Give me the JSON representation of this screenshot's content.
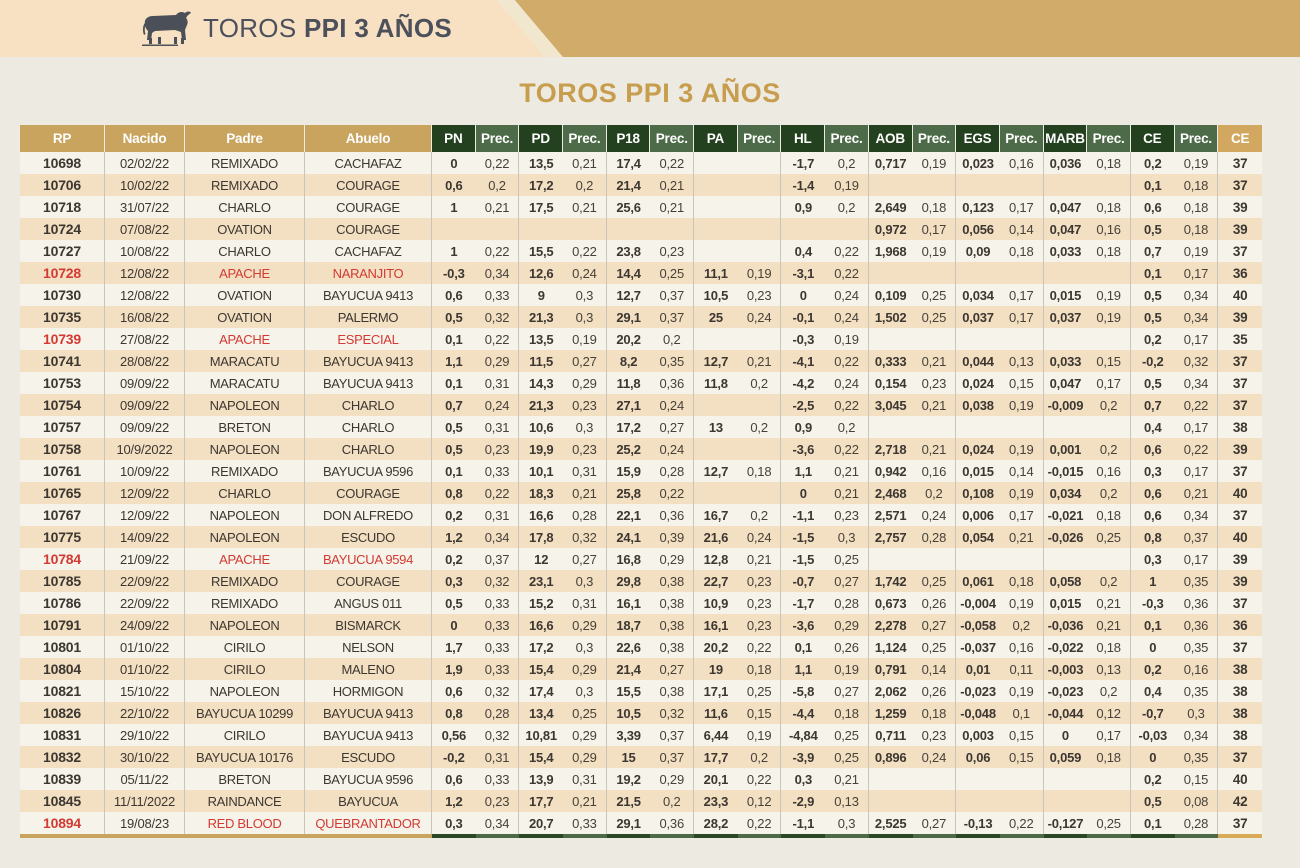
{
  "banner": {
    "title_regular": "TOROS ",
    "title_bold": "PPI 3 AÑOS"
  },
  "page_title": "TOROS PPI 3 AÑOS",
  "colors": {
    "banner_peach": "#f8e0c2",
    "banner_gold": "#d0ab69",
    "title_gold": "#c79d4e",
    "header_tan": "#c8a45f",
    "header_dark_green": "#24411f",
    "header_med_green": "#4e6b49",
    "header_final_gold": "#d2a75f",
    "stripe_light": "#f6f3ea",
    "stripe_tan": "#f3dfc2",
    "flag_red": "#d23a32",
    "text_dark": "#3c3731",
    "page_bg": "#edeae1"
  },
  "table": {
    "left_headers": [
      "RP",
      "Nacido",
      "Padre",
      "Abuelo"
    ],
    "stat_headers": [
      "PN",
      "PD",
      "P18",
      "PA",
      "HL",
      "AOB",
      "EGS",
      "MARB",
      "CE"
    ],
    "prec_header": "Prec.",
    "final_header": "CE",
    "rows": [
      {
        "rp": "10698",
        "nacido": "02/02/22",
        "padre": "REMIXADO",
        "abuelo": "CACHAFAZ",
        "red": false,
        "values": [
          "0",
          "0,22",
          "13,5",
          "0,21",
          "17,4",
          "0,22",
          "",
          "",
          "-1,7",
          "0,2",
          "0,717",
          "0,19",
          "0,023",
          "0,16",
          "0,036",
          "0,18",
          "0,2",
          "0,19"
        ],
        "ce": "37"
      },
      {
        "rp": "10706",
        "nacido": "10/02/22",
        "padre": "REMIXADO",
        "abuelo": "COURAGE",
        "red": false,
        "values": [
          "0,6",
          "0,2",
          "17,2",
          "0,2",
          "21,4",
          "0,21",
          "",
          "",
          "-1,4",
          "0,19",
          "",
          "",
          "",
          "",
          "",
          "",
          "0,1",
          "0,18"
        ],
        "ce": "37"
      },
      {
        "rp": "10718",
        "nacido": "31/07/22",
        "padre": "CHARLO",
        "abuelo": "COURAGE",
        "red": false,
        "values": [
          "1",
          "0,21",
          "17,5",
          "0,21",
          "25,6",
          "0,21",
          "",
          "",
          "0,9",
          "0,2",
          "2,649",
          "0,18",
          "0,123",
          "0,17",
          "0,047",
          "0,18",
          "0,6",
          "0,18"
        ],
        "ce": "39"
      },
      {
        "rp": "10724",
        "nacido": "07/08/22",
        "padre": "OVATION",
        "abuelo": "COURAGE",
        "red": false,
        "values": [
          "",
          "",
          "",
          "",
          "",
          "",
          "",
          "",
          "",
          "",
          "0,972",
          "0,17",
          "0,056",
          "0,14",
          "0,047",
          "0,16",
          "0,5",
          "0,18"
        ],
        "ce": "39"
      },
      {
        "rp": "10727",
        "nacido": "10/08/22",
        "padre": "CHARLO",
        "abuelo": "CACHAFAZ",
        "red": false,
        "values": [
          "1",
          "0,22",
          "15,5",
          "0,22",
          "23,8",
          "0,23",
          "",
          "",
          "0,4",
          "0,22",
          "1,968",
          "0,19",
          "0,09",
          "0,18",
          "0,033",
          "0,18",
          "0,7",
          "0,19"
        ],
        "ce": "37"
      },
      {
        "rp": "10728",
        "nacido": "12/08/22",
        "padre": "APACHE",
        "abuelo": "NARANJITO",
        "red": true,
        "values": [
          "-0,3",
          "0,34",
          "12,6",
          "0,24",
          "14,4",
          "0,25",
          "11,1",
          "0,19",
          "-3,1",
          "0,22",
          "",
          "",
          "",
          "",
          "",
          "",
          "0,1",
          "0,17"
        ],
        "ce": "36"
      },
      {
        "rp": "10730",
        "nacido": "12/08/22",
        "padre": "OVATION",
        "abuelo": "BAYUCUA 9413",
        "red": false,
        "values": [
          "0,6",
          "0,33",
          "9",
          "0,3",
          "12,7",
          "0,37",
          "10,5",
          "0,23",
          "0",
          "0,24",
          "0,109",
          "0,25",
          "0,034",
          "0,17",
          "0,015",
          "0,19",
          "0,5",
          "0,34"
        ],
        "ce": "40"
      },
      {
        "rp": "10735",
        "nacido": "16/08/22",
        "padre": "OVATION",
        "abuelo": "PALERMO",
        "red": false,
        "values": [
          "0,5",
          "0,32",
          "21,3",
          "0,3",
          "29,1",
          "0,37",
          "25",
          "0,24",
          "-0,1",
          "0,24",
          "1,502",
          "0,25",
          "0,037",
          "0,17",
          "0,037",
          "0,19",
          "0,5",
          "0,34"
        ],
        "ce": "39"
      },
      {
        "rp": "10739",
        "nacido": "27/08/22",
        "padre": "APACHE",
        "abuelo": "ESPECIAL",
        "red": true,
        "values": [
          "0,1",
          "0,22",
          "13,5",
          "0,19",
          "20,2",
          "0,2",
          "",
          "",
          "-0,3",
          "0,19",
          "",
          "",
          "",
          "",
          "",
          "",
          "0,2",
          "0,17"
        ],
        "ce": "35"
      },
      {
        "rp": "10741",
        "nacido": "28/08/22",
        "padre": "MARACATU",
        "abuelo": "BAYUCUA 9413",
        "red": false,
        "values": [
          "1,1",
          "0,29",
          "11,5",
          "0,27",
          "8,2",
          "0,35",
          "12,7",
          "0,21",
          "-4,1",
          "0,22",
          "0,333",
          "0,21",
          "0,044",
          "0,13",
          "0,033",
          "0,15",
          "-0,2",
          "0,32"
        ],
        "ce": "37"
      },
      {
        "rp": "10753",
        "nacido": "09/09/22",
        "padre": "MARACATU",
        "abuelo": "BAYUCUA 9413",
        "red": false,
        "values": [
          "0,1",
          "0,31",
          "14,3",
          "0,29",
          "11,8",
          "0,36",
          "11,8",
          "0,2",
          "-4,2",
          "0,24",
          "0,154",
          "0,23",
          "0,024",
          "0,15",
          "0,047",
          "0,17",
          "0,5",
          "0,34"
        ],
        "ce": "37"
      },
      {
        "rp": "10754",
        "nacido": "09/09/22",
        "padre": "NAPOLEON",
        "abuelo": "CHARLO",
        "red": false,
        "values": [
          "0,7",
          "0,24",
          "21,3",
          "0,23",
          "27,1",
          "0,24",
          "",
          "",
          "-2,5",
          "0,22",
          "3,045",
          "0,21",
          "0,038",
          "0,19",
          "-0,009",
          "0,2",
          "0,7",
          "0,22"
        ],
        "ce": "37"
      },
      {
        "rp": "10757",
        "nacido": "09/09/22",
        "padre": "BRETON",
        "abuelo": "CHARLO",
        "red": false,
        "values": [
          "0,5",
          "0,31",
          "10,6",
          "0,3",
          "17,2",
          "0,27",
          "13",
          "0,2",
          "0,9",
          "0,2",
          "",
          "",
          "",
          "",
          "",
          "",
          "0,4",
          "0,17"
        ],
        "ce": "38"
      },
      {
        "rp": "10758",
        "nacido": "10/9/2022",
        "padre": "NAPOLEON",
        "abuelo": "CHARLO",
        "red": false,
        "values": [
          "0,5",
          "0,23",
          "19,9",
          "0,23",
          "25,2",
          "0,24",
          "",
          "",
          "-3,6",
          "0,22",
          "2,718",
          "0,21",
          "0,024",
          "0,19",
          "0,001",
          "0,2",
          "0,6",
          "0,22"
        ],
        "ce": "39"
      },
      {
        "rp": "10761",
        "nacido": "10/09/22",
        "padre": "REMIXADO",
        "abuelo": "BAYUCUA 9596",
        "red": false,
        "values": [
          "0,1",
          "0,33",
          "10,1",
          "0,31",
          "15,9",
          "0,28",
          "12,7",
          "0,18",
          "1,1",
          "0,21",
          "0,942",
          "0,16",
          "0,015",
          "0,14",
          "-0,015",
          "0,16",
          "0,3",
          "0,17"
        ],
        "ce": "37"
      },
      {
        "rp": "10765",
        "nacido": "12/09/22",
        "padre": "CHARLO",
        "abuelo": "COURAGE",
        "red": false,
        "values": [
          "0,8",
          "0,22",
          "18,3",
          "0,21",
          "25,8",
          "0,22",
          "",
          "",
          "0",
          "0,21",
          "2,468",
          "0,2",
          "0,108",
          "0,19",
          "0,034",
          "0,2",
          "0,6",
          "0,21"
        ],
        "ce": "40"
      },
      {
        "rp": "10767",
        "nacido": "12/09/22",
        "padre": "NAPOLEON",
        "abuelo": "DON ALFREDO",
        "red": false,
        "values": [
          "0,2",
          "0,31",
          "16,6",
          "0,28",
          "22,1",
          "0,36",
          "16,7",
          "0,2",
          "-1,1",
          "0,23",
          "2,571",
          "0,24",
          "0,006",
          "0,17",
          "-0,021",
          "0,18",
          "0,6",
          "0,34"
        ],
        "ce": "37"
      },
      {
        "rp": "10775",
        "nacido": "14/09/22",
        "padre": "NAPOLEON",
        "abuelo": "ESCUDO",
        "red": false,
        "values": [
          "1,2",
          "0,34",
          "17,8",
          "0,32",
          "24,1",
          "0,39",
          "21,6",
          "0,24",
          "-1,5",
          "0,3",
          "2,757",
          "0,28",
          "0,054",
          "0,21",
          "-0,026",
          "0,25",
          "0,8",
          "0,37"
        ],
        "ce": "40"
      },
      {
        "rp": "10784",
        "nacido": "21/09/22",
        "padre": "APACHE",
        "abuelo": "BAYUCUA 9594",
        "red": true,
        "values": [
          "0,2",
          "0,37",
          "12",
          "0,27",
          "16,8",
          "0,29",
          "12,8",
          "0,21",
          "-1,5",
          "0,25",
          "",
          "",
          "",
          "",
          "",
          "",
          "0,3",
          "0,17"
        ],
        "ce": "39"
      },
      {
        "rp": "10785",
        "nacido": "22/09/22",
        "padre": "REMIXADO",
        "abuelo": "COURAGE",
        "red": false,
        "values": [
          "0,3",
          "0,32",
          "23,1",
          "0,3",
          "29,8",
          "0,38",
          "22,7",
          "0,23",
          "-0,7",
          "0,27",
          "1,742",
          "0,25",
          "0,061",
          "0,18",
          "0,058",
          "0,2",
          "1",
          "0,35"
        ],
        "ce": "39"
      },
      {
        "rp": "10786",
        "nacido": "22/09/22",
        "padre": "REMIXADO",
        "abuelo": "ANGUS 011",
        "red": false,
        "values": [
          "0,5",
          "0,33",
          "15,2",
          "0,31",
          "16,1",
          "0,38",
          "10,9",
          "0,23",
          "-1,7",
          "0,28",
          "0,673",
          "0,26",
          "-0,004",
          "0,19",
          "0,015",
          "0,21",
          "-0,3",
          "0,36"
        ],
        "ce": "37"
      },
      {
        "rp": "10791",
        "nacido": "24/09/22",
        "padre": "NAPOLEON",
        "abuelo": "BISMARCK",
        "red": false,
        "values": [
          "0",
          "0,33",
          "16,6",
          "0,29",
          "18,7",
          "0,38",
          "16,1",
          "0,23",
          "-3,6",
          "0,29",
          "2,278",
          "0,27",
          "-0,058",
          "0,2",
          "-0,036",
          "0,21",
          "0,1",
          "0,36"
        ],
        "ce": "36"
      },
      {
        "rp": "10801",
        "nacido": "01/10/22",
        "padre": "CIRILO",
        "abuelo": "NELSON",
        "red": false,
        "values": [
          "1,7",
          "0,33",
          "17,2",
          "0,3",
          "22,6",
          "0,38",
          "20,2",
          "0,22",
          "0,1",
          "0,26",
          "1,124",
          "0,25",
          "-0,037",
          "0,16",
          "-0,022",
          "0,18",
          "0",
          "0,35"
        ],
        "ce": "37"
      },
      {
        "rp": "10804",
        "nacido": "01/10/22",
        "padre": "CIRILO",
        "abuelo": "MALENO",
        "red": false,
        "values": [
          "1,9",
          "0,33",
          "15,4",
          "0,29",
          "21,4",
          "0,27",
          "19",
          "0,18",
          "1,1",
          "0,19",
          "0,791",
          "0,14",
          "0,01",
          "0,11",
          "-0,003",
          "0,13",
          "0,2",
          "0,16"
        ],
        "ce": "38"
      },
      {
        "rp": "10821",
        "nacido": "15/10/22",
        "padre": "NAPOLEON",
        "abuelo": "HORMIGON",
        "red": false,
        "values": [
          "0,6",
          "0,32",
          "17,4",
          "0,3",
          "15,5",
          "0,38",
          "17,1",
          "0,25",
          "-5,8",
          "0,27",
          "2,062",
          "0,26",
          "-0,023",
          "0,19",
          "-0,023",
          "0,2",
          "0,4",
          "0,35"
        ],
        "ce": "38"
      },
      {
        "rp": "10826",
        "nacido": "22/10/22",
        "padre": "BAYUCUA 10299",
        "abuelo": "BAYUCUA 9413",
        "red": false,
        "values": [
          "0,8",
          "0,28",
          "13,4",
          "0,25",
          "10,5",
          "0,32",
          "11,6",
          "0,15",
          "-4,4",
          "0,18",
          "1,259",
          "0,18",
          "-0,048",
          "0,1",
          "-0,044",
          "0,12",
          "-0,7",
          "0,3"
        ],
        "ce": "38"
      },
      {
        "rp": "10831",
        "nacido": "29/10/22",
        "padre": "CIRILO",
        "abuelo": "BAYUCUA 9413",
        "red": false,
        "values": [
          "0,56",
          "0,32",
          "10,81",
          "0,29",
          "3,39",
          "0,37",
          "6,44",
          "0,19",
          "-4,84",
          "0,25",
          "0,711",
          "0,23",
          "0,003",
          "0,15",
          "0",
          "0,17",
          "-0,03",
          "0,34"
        ],
        "ce": "38"
      },
      {
        "rp": "10832",
        "nacido": "30/10/22",
        "padre": "BAYUCUA 10176",
        "abuelo": "ESCUDO",
        "red": false,
        "values": [
          "-0,2",
          "0,31",
          "15,4",
          "0,29",
          "15",
          "0,37",
          "17,7",
          "0,2",
          "-3,9",
          "0,25",
          "0,896",
          "0,24",
          "0,06",
          "0,15",
          "0,059",
          "0,18",
          "0",
          "0,35"
        ],
        "ce": "37"
      },
      {
        "rp": "10839",
        "nacido": "05/11/22",
        "padre": "BRETON",
        "abuelo": "BAYUCUA 9596",
        "red": false,
        "values": [
          "0,6",
          "0,33",
          "13,9",
          "0,31",
          "19,2",
          "0,29",
          "20,1",
          "0,22",
          "0,3",
          "0,21",
          "",
          "",
          "",
          "",
          "",
          "",
          "0,2",
          "0,15"
        ],
        "ce": "40"
      },
      {
        "rp": "10845",
        "nacido": "11/11/2022",
        "padre": "RAINDANCE",
        "abuelo": "BAYUCUA",
        "red": false,
        "values": [
          "1,2",
          "0,23",
          "17,7",
          "0,21",
          "21,5",
          "0,2",
          "23,3",
          "0,12",
          "-2,9",
          "0,13",
          "",
          "",
          "",
          "",
          "",
          "",
          "0,5",
          "0,08"
        ],
        "ce": "42"
      },
      {
        "rp": "10894",
        "nacido": "19/08/23",
        "padre": "RED BLOOD",
        "abuelo": "QUEBRANTADOR",
        "red": true,
        "values": [
          "0,3",
          "0,34",
          "20,7",
          "0,33",
          "29,1",
          "0,36",
          "28,2",
          "0,22",
          "-1,1",
          "0,3",
          "2,525",
          "0,27",
          "-0,13",
          "0,22",
          "-0,127",
          "0,25",
          "0,1",
          "0,28"
        ],
        "ce": "37"
      }
    ]
  }
}
